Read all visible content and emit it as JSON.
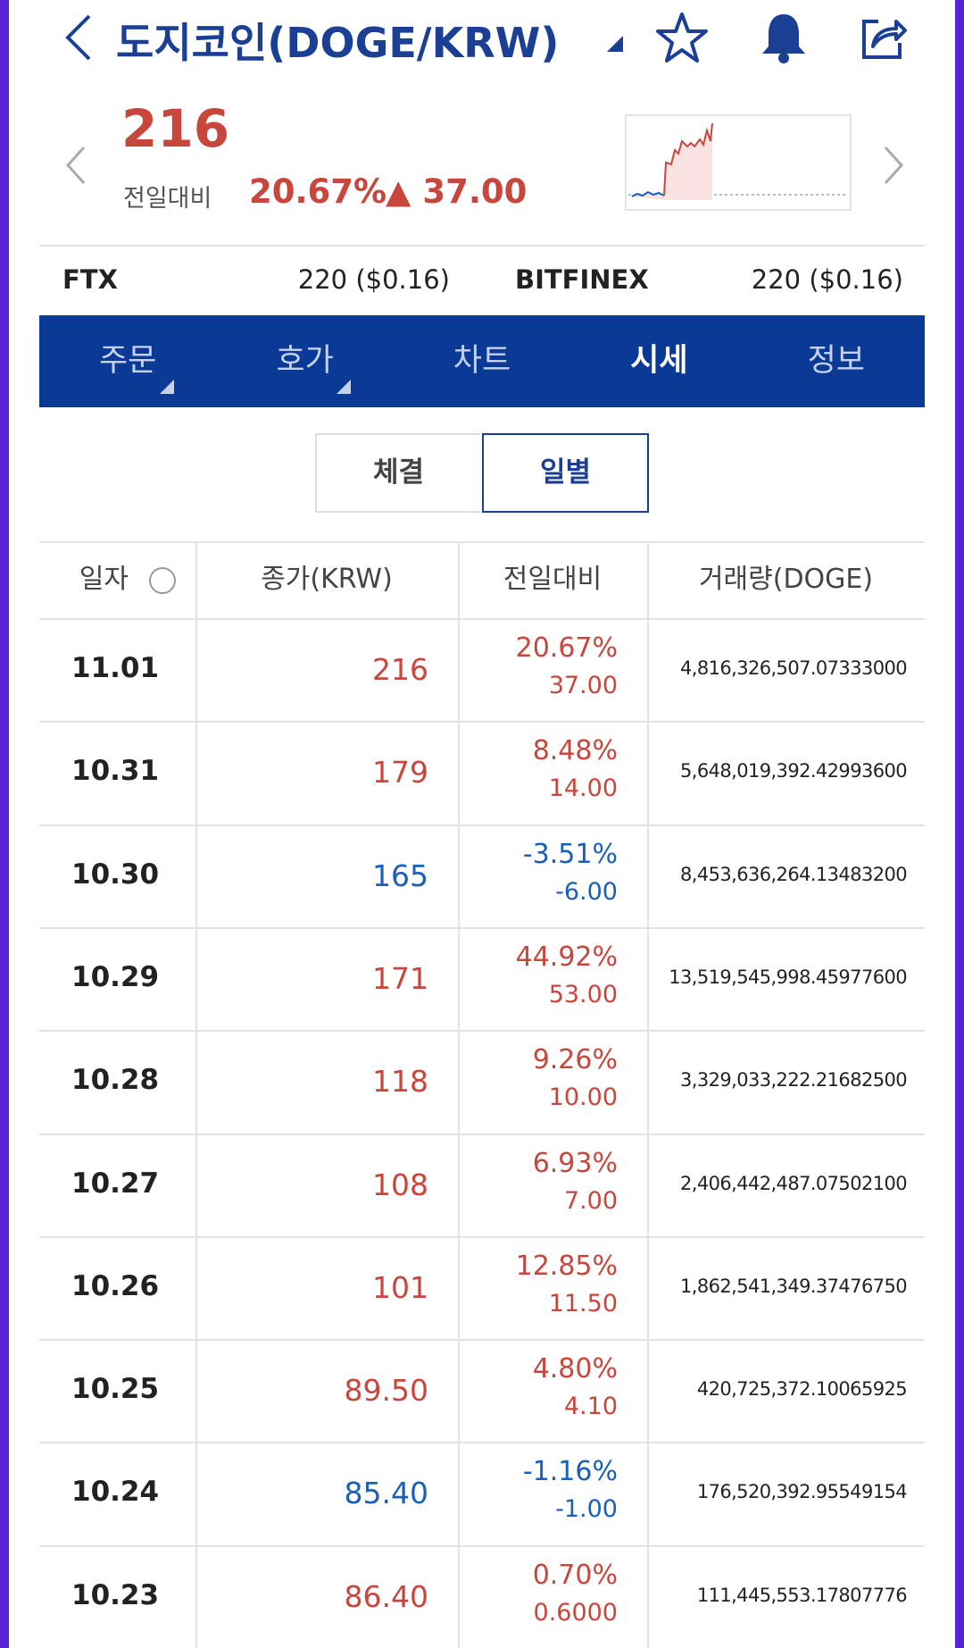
{
  "header": {
    "title": "도지코인(DOGE/KRW)",
    "price": "216",
    "change_label": "전일대비",
    "change_rate": "20.67%",
    "change_amount": "▲ 37.00"
  },
  "exchanges": [
    {
      "name": "FTX",
      "price": "220 ($0.16)"
    },
    {
      "name": "BITFINEX",
      "price": "220 ($0.16)"
    }
  ],
  "tabs": [
    "주문",
    "호가",
    "차트",
    "시세",
    "정보"
  ],
  "active_tab": 3,
  "subtabs": [
    "체결",
    "일별"
  ],
  "active_subtab": 1,
  "table": {
    "columns": [
      "일자",
      "종가(KRW)",
      "전일대비",
      "거래량(DOGE)"
    ],
    "rows": [
      {
        "date": "11.01",
        "close": "216",
        "rate": "20.67%",
        "diff": "37.00",
        "volume": "4,816,326,507.07333000",
        "trend": "up"
      },
      {
        "date": "10.31",
        "close": "179",
        "rate": "8.48%",
        "diff": "14.00",
        "volume": "5,648,019,392.42993600",
        "trend": "up"
      },
      {
        "date": "10.30",
        "close": "165",
        "rate": "-3.51%",
        "diff": "-6.00",
        "volume": "8,453,636,264.13483200",
        "trend": "down"
      },
      {
        "date": "10.29",
        "close": "171",
        "rate": "44.92%",
        "diff": "53.00",
        "volume": "13,519,545,998.45977600",
        "trend": "up"
      },
      {
        "date": "10.28",
        "close": "118",
        "rate": "9.26%",
        "diff": "10.00",
        "volume": "3,329,033,222.21682500",
        "trend": "up"
      },
      {
        "date": "10.27",
        "close": "108",
        "rate": "6.93%",
        "diff": "7.00",
        "volume": "2,406,442,487.07502100",
        "trend": "up"
      },
      {
        "date": "10.26",
        "close": "101",
        "rate": "12.85%",
        "diff": "11.50",
        "volume": "1,862,541,349.37476750",
        "trend": "up"
      },
      {
        "date": "10.25",
        "close": "89.50",
        "rate": "4.80%",
        "diff": "4.10",
        "volume": "420,725,372.10065925",
        "trend": "up"
      },
      {
        "date": "10.24",
        "close": "85.40",
        "rate": "-1.16%",
        "diff": "-1.00",
        "volume": "176,520,392.95549154",
        "trend": "down"
      },
      {
        "date": "10.23",
        "close": "86.40",
        "rate": "0.70%",
        "diff": "0.6000",
        "volume": "111,445,553.17807776",
        "trend": "up"
      }
    ]
  }
}
